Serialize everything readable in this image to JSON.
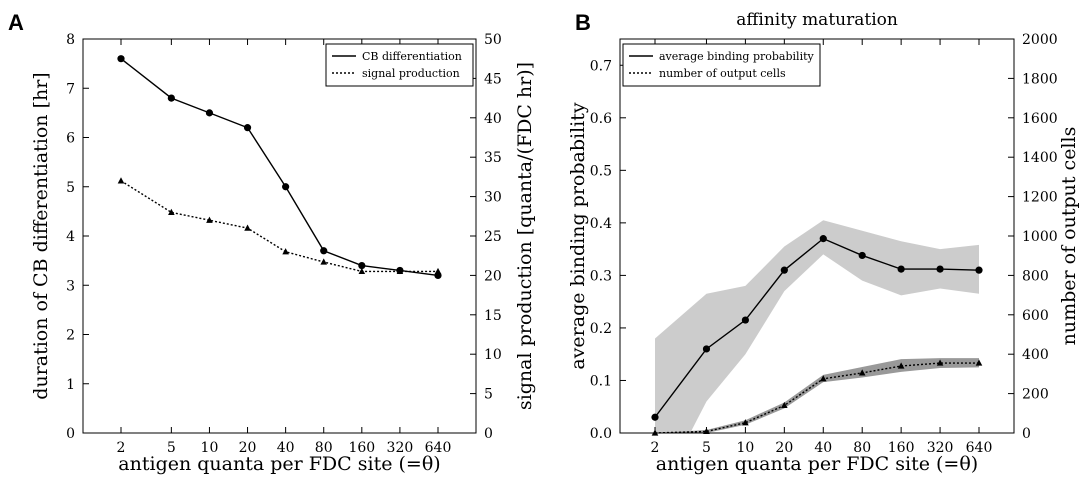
{
  "chart_data": [
    {
      "panel_label": "A",
      "type": "line",
      "title": "",
      "xlabel": "antigen quanta per FDC site (=θ)",
      "x_scale": "log",
      "x": [
        2,
        5,
        10,
        20,
        40,
        80,
        160,
        320,
        640
      ],
      "x_tick_labels": [
        "2",
        "5",
        "10",
        "20",
        "40",
        "80",
        "160",
        "320",
        "640"
      ],
      "ylabel": "duration of CB differentiation [hr]",
      "ylim": [
        0,
        8
      ],
      "y_ticks": [
        0,
        1,
        2,
        3,
        4,
        5,
        6,
        7,
        8
      ],
      "y2label": "signal production [quanta/(FDC hr)]",
      "y2lim": [
        0,
        50
      ],
      "y2_ticks": [
        0,
        5,
        10,
        15,
        20,
        25,
        30,
        35,
        40,
        45,
        50
      ],
      "legend_position": "top-right",
      "series": [
        {
          "name": "CB differentiation",
          "axis": "left",
          "style": "solid",
          "marker": "circle",
          "values": [
            7.6,
            6.8,
            6.5,
            6.2,
            5.0,
            3.7,
            3.4,
            3.3,
            3.2
          ]
        },
        {
          "name": "signal production",
          "axis": "right",
          "style": "dotted",
          "marker": "triangle",
          "values": [
            32,
            28,
            27,
            26,
            23,
            21.7,
            20.5,
            20.5,
            20.5
          ]
        }
      ],
      "grid": false
    },
    {
      "panel_label": "B",
      "type": "line",
      "title": "affinity maturation",
      "xlabel": "antigen quanta per FDC site (=θ)",
      "x_scale": "log",
      "x": [
        2,
        5,
        10,
        20,
        40,
        80,
        160,
        320,
        640
      ],
      "x_tick_labels": [
        "2",
        "5",
        "10",
        "20",
        "40",
        "80",
        "160",
        "320",
        "640"
      ],
      "ylabel": "average binding probability",
      "ylim": [
        0,
        0.75
      ],
      "y_ticks": [
        0,
        0.1,
        0.2,
        0.3,
        0.4,
        0.5,
        0.6,
        0.7
      ],
      "y_tick_labels": [
        "0.0",
        "0.1",
        "0.2",
        "0.3",
        "0.4",
        "0.5",
        "0.6",
        "0.7"
      ],
      "y2label": "number of output cells",
      "y2lim": [
        0,
        2000
      ],
      "y2_ticks": [
        0,
        200,
        400,
        600,
        800,
        1000,
        1200,
        1400,
        1600,
        1800,
        2000
      ],
      "legend_position": "top-left",
      "series": [
        {
          "name": "average binding probability",
          "axis": "left",
          "style": "solid",
          "marker": "circle",
          "values": [
            0.03,
            0.16,
            0.215,
            0.31,
            0.37,
            0.338,
            0.312,
            0.312,
            0.31
          ],
          "band_upper": [
            0.18,
            0.265,
            0.28,
            0.355,
            0.405,
            0.385,
            0.365,
            0.35,
            0.358
          ],
          "band_lower": [
            -0.13,
            0.06,
            0.15,
            0.27,
            0.34,
            0.29,
            0.262,
            0.275,
            0.265
          ],
          "band_color": "#cccccc"
        },
        {
          "name": "number of output cells",
          "axis": "right",
          "style": "dotted",
          "marker": "triangle",
          "values": [
            0,
            8,
            52,
            140,
            275,
            305,
            340,
            355,
            355
          ],
          "band_upper": [
            0,
            15,
            65,
            155,
            295,
            335,
            375,
            380,
            380
          ],
          "band_lower": [
            0,
            0,
            42,
            125,
            258,
            282,
            310,
            330,
            333
          ],
          "band_color": "#999999"
        }
      ],
      "grid": false
    }
  ]
}
